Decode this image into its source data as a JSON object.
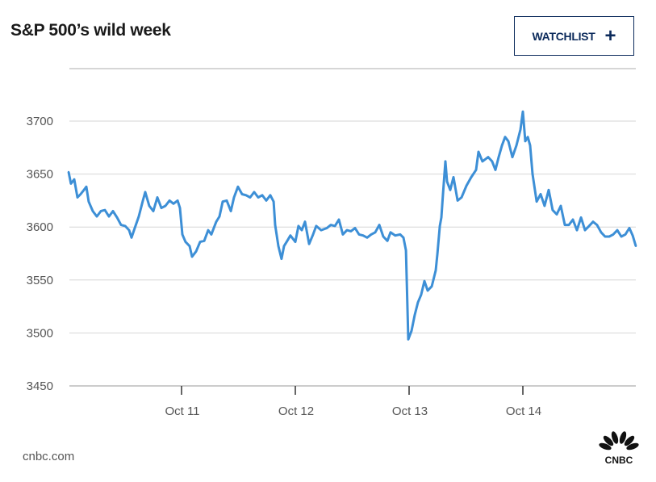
{
  "header": {
    "title": "S&P 500’s wild week",
    "watchlist_label": "WATCHLIST",
    "watchlist_icon": "plus-icon"
  },
  "footer": {
    "source": "cnbc.com",
    "logo_text": "CNBC"
  },
  "colors": {
    "line": "#3d8fd6",
    "grid": "#d6d6d6",
    "button": "#0b2a5b"
  },
  "chart_data": {
    "type": "line",
    "title": "S&P 500’s wild week",
    "xlabel": "",
    "ylabel": "",
    "ylim": [
      3450,
      3750
    ],
    "xlim": [
      0,
      5
    ],
    "yticks": [
      3450,
      3500,
      3550,
      3600,
      3650,
      3700
    ],
    "ytick_labels": [
      "3450",
      "3500",
      "3550",
      "3600",
      "3650",
      "3700"
    ],
    "xticks": [
      1,
      2,
      3,
      4
    ],
    "xtick_labels": [
      "Oct 11",
      "Oct 12",
      "Oct 13",
      "Oct 14"
    ],
    "grid": true,
    "series": [
      {
        "name": "S&P 500",
        "x": [
          0.007,
          0.028,
          0.057,
          0.085,
          0.113,
          0.142,
          0.163,
          0.184,
          0.22,
          0.255,
          0.291,
          0.326,
          0.362,
          0.397,
          0.433,
          0.468,
          0.504,
          0.539,
          0.56,
          0.589,
          0.624,
          0.66,
          0.681,
          0.716,
          0.752,
          0.787,
          0.823,
          0.858,
          0.894,
          0.929,
          0.965,
          0.986,
          1.007,
          1.035,
          1.071,
          1.092,
          1.128,
          1.163,
          1.199,
          1.234,
          1.262,
          1.305,
          1.333,
          1.362,
          1.397,
          1.433,
          1.461,
          1.496,
          1.532,
          1.567,
          1.603,
          1.638,
          1.674,
          1.709,
          1.745,
          1.78,
          1.809,
          1.823,
          1.851,
          1.879,
          1.901,
          1.929,
          1.957,
          2.0,
          2.028,
          2.057,
          2.085,
          2.121,
          2.156,
          2.184,
          2.227,
          2.277,
          2.312,
          2.348,
          2.383,
          2.418,
          2.454,
          2.489,
          2.525,
          2.56,
          2.596,
          2.631,
          2.667,
          2.702,
          2.738,
          2.773,
          2.809,
          2.837,
          2.879,
          2.922,
          2.95,
          2.972,
          2.993,
          3.021,
          3.05,
          3.078,
          3.106,
          3.135,
          3.163,
          3.199,
          3.234,
          3.248,
          3.27,
          3.284,
          3.298,
          3.319,
          3.333,
          3.362,
          3.39,
          3.426,
          3.461,
          3.504,
          3.546,
          3.589,
          3.61,
          3.645,
          3.695,
          3.73,
          3.759,
          3.787,
          3.816,
          3.844,
          3.872,
          3.908,
          3.943,
          3.979,
          4.0,
          4.021,
          4.043,
          4.064,
          4.085,
          4.121,
          4.156,
          4.191,
          4.227,
          4.262,
          4.298,
          4.333,
          4.369,
          4.404,
          4.44,
          4.475,
          4.511,
          4.546,
          4.582,
          4.617,
          4.652,
          4.688,
          4.723,
          4.759,
          4.794,
          4.83,
          4.865,
          4.901,
          4.936,
          4.965,
          4.993
        ],
        "y": [
          3652,
          3641,
          3645,
          3628,
          3631,
          3635,
          3638,
          3624,
          3615,
          3610,
          3615,
          3616,
          3610,
          3615,
          3609,
          3602,
          3601,
          3597,
          3590,
          3599,
          3610,
          3625,
          3633,
          3620,
          3615,
          3628,
          3618,
          3620,
          3625,
          3622,
          3625,
          3618,
          3593,
          3586,
          3582,
          3572,
          3577,
          3586,
          3587,
          3597,
          3593,
          3605,
          3610,
          3624,
          3625,
          3615,
          3628,
          3638,
          3631,
          3630,
          3628,
          3633,
          3628,
          3630,
          3625,
          3630,
          3624,
          3602,
          3582,
          3570,
          3582,
          3587,
          3592,
          3586,
          3601,
          3597,
          3605,
          3584,
          3593,
          3601,
          3597,
          3599,
          3602,
          3601,
          3607,
          3593,
          3597,
          3596,
          3599,
          3593,
          3592,
          3590,
          3593,
          3595,
          3602,
          3591,
          3587,
          3595,
          3592,
          3593,
          3590,
          3578,
          3494,
          3502,
          3517,
          3529,
          3536,
          3549,
          3540,
          3544,
          3559,
          3574,
          3601,
          3609,
          3631,
          3662,
          3643,
          3635,
          3647,
          3625,
          3628,
          3639,
          3647,
          3654,
          3671,
          3662,
          3666,
          3662,
          3654,
          3666,
          3677,
          3685,
          3681,
          3666,
          3677,
          3692,
          3709,
          3681,
          3685,
          3677,
          3650,
          3624,
          3631,
          3620,
          3635,
          3616,
          3612,
          3620,
          3602,
          3602,
          3607,
          3597,
          3609,
          3597,
          3601,
          3605,
          3602,
          3595,
          3591,
          3591,
          3593,
          3597,
          3591,
          3593,
          3599,
          3592,
          3582
        ]
      }
    ]
  }
}
